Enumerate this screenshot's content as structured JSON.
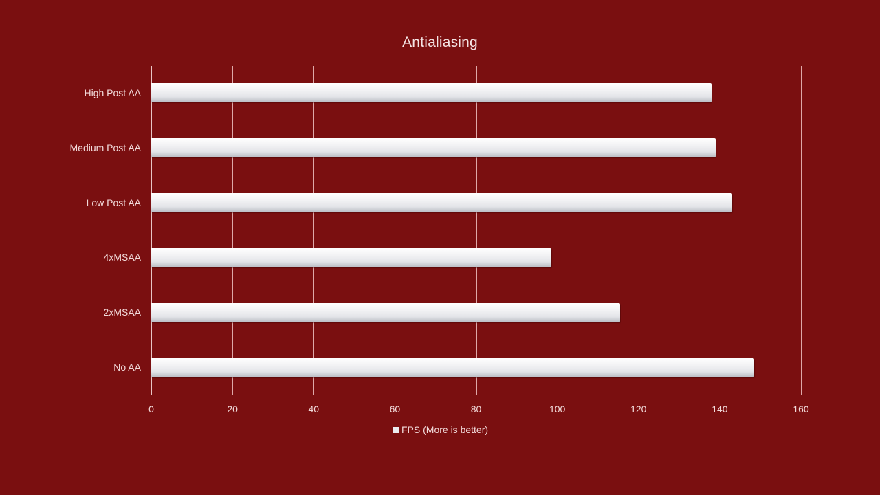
{
  "chart_data": {
    "type": "bar",
    "orientation": "horizontal",
    "title": "Antialiasing",
    "categories": [
      "High Post AA",
      "Medium Post AA",
      "Low Post AA",
      "4xMSAA",
      "2xMSAA",
      "No AA"
    ],
    "series": [
      {
        "name": "FPS (More is better)",
        "values": [
          138,
          139,
          143,
          98.5,
          115.5,
          148.5
        ]
      }
    ],
    "xlabel": "",
    "ylabel": "",
    "xlim": [
      0,
      160
    ],
    "xticks": [
      0,
      20,
      40,
      60,
      80,
      100,
      120,
      140,
      160
    ],
    "grid": "vertical",
    "legend_position": "bottom",
    "colors": {
      "background": "#7a0f10",
      "bar": "#e8e8ec",
      "gridline": "#e9b9b9",
      "text": "#f2dada"
    }
  },
  "title": "Antialiasing",
  "legend": {
    "label": "FPS (More is better)"
  },
  "ticks": [
    "0",
    "20",
    "40",
    "60",
    "80",
    "100",
    "120",
    "140",
    "160"
  ],
  "categories": [
    "High Post AA",
    "Medium Post AA",
    "Low Post AA",
    "4xMSAA",
    "2xMSAA",
    "No AA"
  ]
}
